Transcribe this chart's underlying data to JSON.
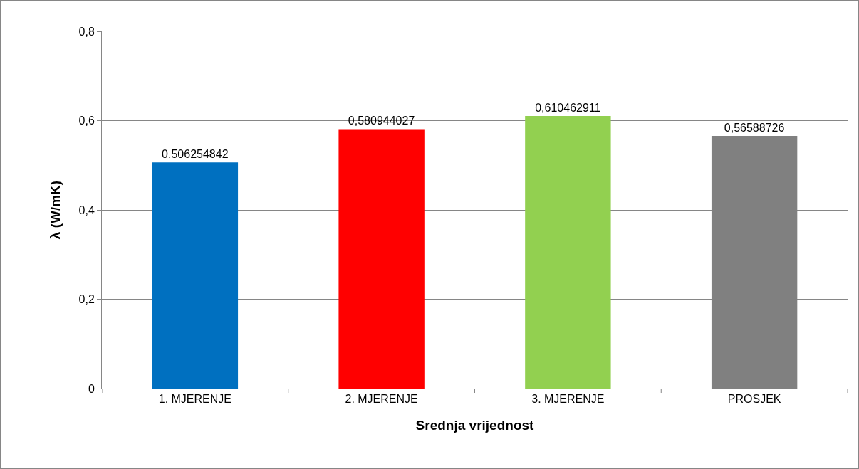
{
  "chart_data": {
    "type": "bar",
    "xlabel": "Srednja vrijednost",
    "ylabel": "λ (W/mK)",
    "categories": [
      "1. MJERENJE",
      "2. MJERENJE",
      "3. MJERENJE",
      "PROSJEK"
    ],
    "values": [
      0.506254842,
      0.580944027,
      0.610462911,
      0.56588726
    ],
    "colors": [
      "#0070c0",
      "#ff0000",
      "#92d050",
      "#808080"
    ],
    "value_labels": [
      "0,506254842",
      "0,580944027",
      "0,610462911",
      "0,56588726"
    ],
    "ylim": [
      0,
      0.8
    ],
    "yticks": [
      {
        "value": 0,
        "label": "0"
      },
      {
        "value": 0.2,
        "label": "0,2"
      },
      {
        "value": 0.4,
        "label": "0,4"
      },
      {
        "value": 0.6,
        "label": "0,6"
      },
      {
        "value": 0.8,
        "label": "0,8"
      }
    ],
    "grid": "y"
  }
}
